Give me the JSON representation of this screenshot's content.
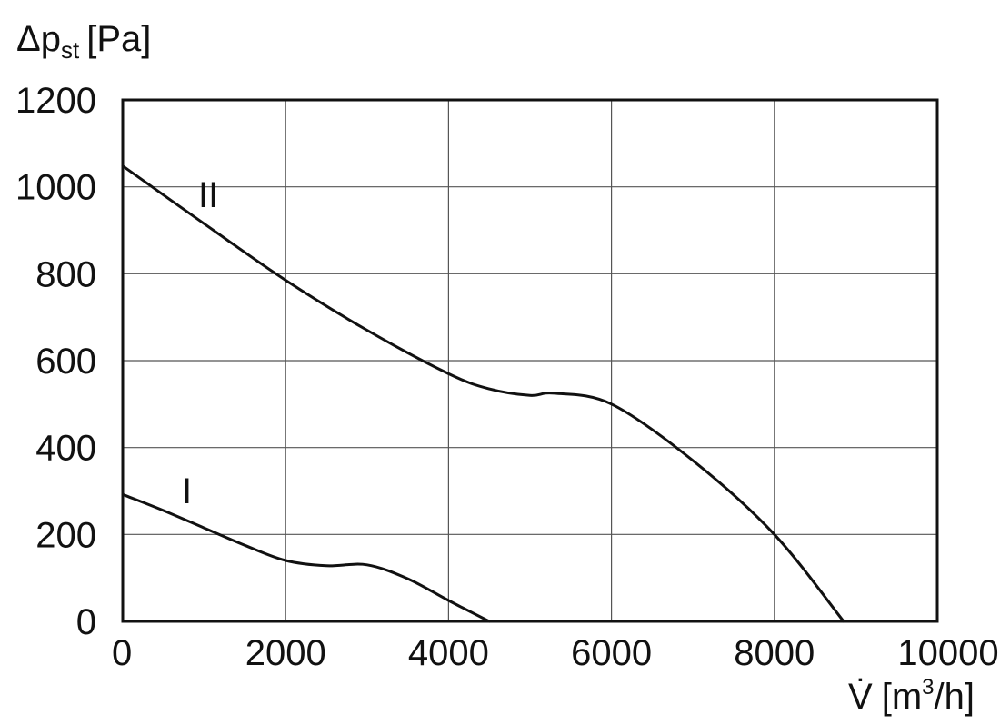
{
  "chart_data": {
    "type": "line",
    "y_label": {
      "symbol": "Δp",
      "sub": "st",
      "unit": "[Pa]"
    },
    "x_label": {
      "symbol": "V̇",
      "unit_before": "[m",
      "sup": "3",
      "unit_after": "/h]"
    },
    "xlim": [
      0,
      10000
    ],
    "ylim": [
      0,
      1200
    ],
    "x_ticks": [
      0,
      2000,
      4000,
      6000,
      8000,
      10000
    ],
    "y_ticks": [
      0,
      200,
      400,
      600,
      800,
      1000,
      1200
    ],
    "grid": true,
    "series": [
      {
        "name": "I",
        "x": [
          0,
          500,
          1000,
          1500,
          2000,
          2500,
          3000,
          3500,
          4000,
          4500
        ],
        "y": [
          292,
          255,
          215,
          175,
          140,
          128,
          130,
          98,
          48,
          0
        ]
      },
      {
        "name": "II",
        "x": [
          0,
          1000,
          2000,
          3000,
          4000,
          4500,
          5000,
          5300,
          6000,
          7000,
          8000,
          8850
        ],
        "y": [
          1048,
          915,
          785,
          670,
          570,
          535,
          520,
          525,
          500,
          370,
          200,
          0
        ]
      }
    ]
  }
}
